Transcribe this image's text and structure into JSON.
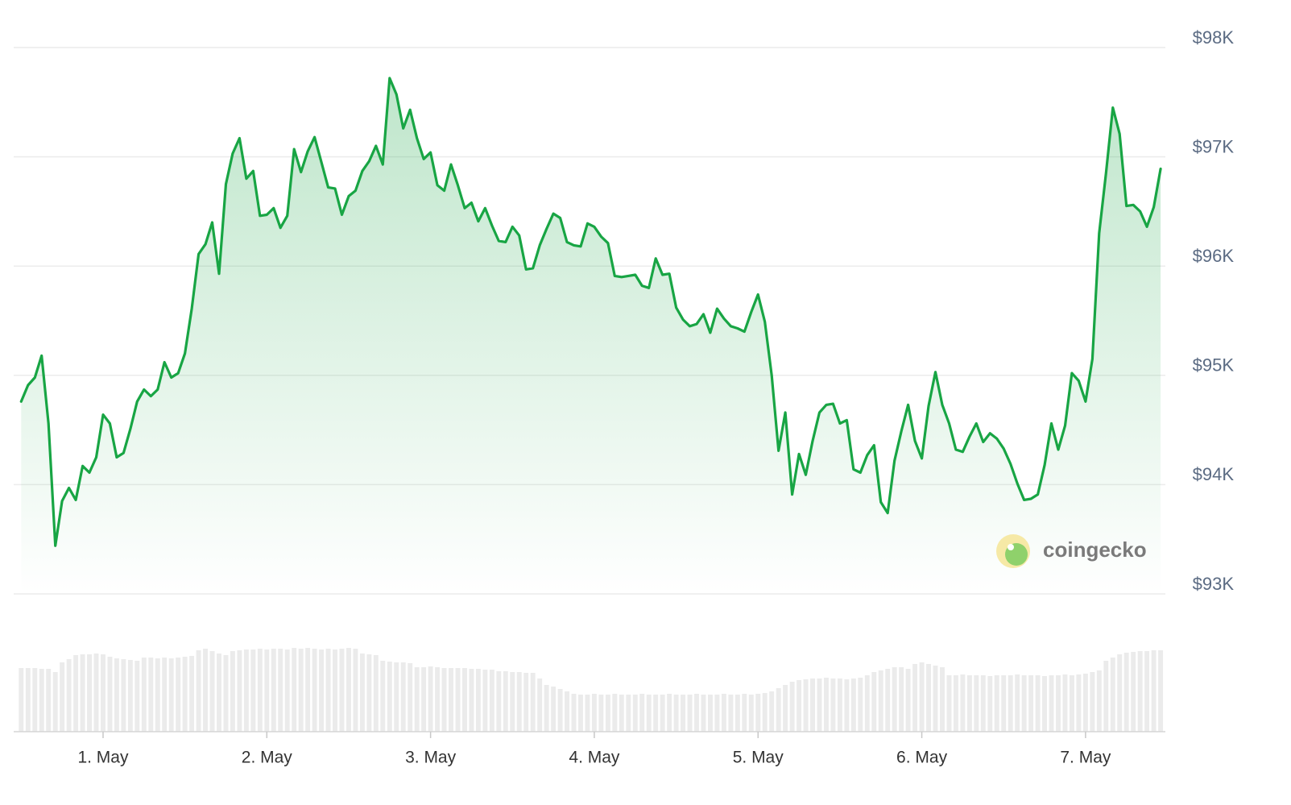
{
  "chart_data": {
    "type": "line",
    "color": "#18a544",
    "x": [
      -12,
      -11,
      -10,
      -9,
      -8,
      -7,
      -6,
      -5,
      -4,
      -3,
      -2,
      -1,
      0,
      1,
      2,
      3,
      4,
      5,
      6,
      7,
      8,
      9,
      10,
      11,
      12,
      13,
      14,
      15,
      16,
      17,
      18,
      19,
      20,
      21,
      22,
      23,
      24,
      25,
      26,
      27,
      28,
      29,
      30,
      31,
      32,
      33,
      34,
      35,
      36,
      37,
      38,
      39,
      40,
      41,
      42,
      43,
      44,
      45,
      46,
      47,
      48,
      49,
      50,
      51,
      52,
      53,
      54,
      55,
      56,
      57,
      58,
      59,
      60,
      61,
      62,
      63,
      64,
      65,
      66,
      67,
      68,
      69,
      70,
      71,
      72,
      73,
      74,
      75,
      76,
      77,
      78,
      79,
      80,
      81,
      82,
      83,
      84,
      85,
      86,
      87,
      88,
      89,
      90,
      91,
      92,
      93,
      94,
      95,
      96,
      97,
      98,
      99,
      100,
      101,
      102,
      103,
      104,
      105,
      106,
      107,
      108,
      109,
      110,
      111,
      112,
      113,
      114,
      115,
      116,
      117,
      118,
      119,
      120,
      121,
      122,
      123,
      124,
      125,
      126,
      127,
      128,
      129,
      130,
      131,
      132,
      133,
      134,
      135,
      136,
      137,
      138,
      139,
      140,
      141,
      142,
      143,
      144,
      145,
      146,
      147,
      148,
      149,
      150,
      151,
      152,
      153,
      154,
      155
    ],
    "values": [
      94760,
      94910,
      94980,
      95180,
      94560,
      93440,
      93850,
      93970,
      93860,
      94170,
      94110,
      94250,
      94640,
      94560,
      94250,
      94290,
      94510,
      94760,
      94870,
      94810,
      94870,
      95120,
      94980,
      95020,
      95200,
      95610,
      96110,
      96200,
      96400,
      95930,
      96750,
      97030,
      97170,
      96800,
      96870,
      96460,
      96470,
      96530,
      96350,
      96460,
      97070,
      96860,
      97050,
      97180,
      96950,
      96720,
      96710,
      96470,
      96640,
      96690,
      96870,
      96960,
      97100,
      96930,
      97720,
      97570,
      97260,
      97430,
      97170,
      96980,
      97040,
      96740,
      96690,
      96930,
      96740,
      96530,
      96580,
      96410,
      96530,
      96370,
      96230,
      96220,
      96360,
      96280,
      95970,
      95980,
      96190,
      96340,
      96480,
      96440,
      96220,
      96190,
      96180,
      96390,
      96360,
      96270,
      96210,
      95910,
      95900,
      95910,
      95920,
      95820,
      95800,
      96070,
      95920,
      95930,
      95620,
      95510,
      95450,
      95470,
      95560,
      95390,
      95610,
      95520,
      95450,
      95430,
      95400,
      95580,
      95740,
      95490,
      95000,
      94310,
      94660,
      93910,
      94280,
      94090,
      94400,
      94660,
      94730,
      94740,
      94560,
      94590,
      94140,
      94110,
      94270,
      94360,
      93840,
      93740,
      94220,
      94490,
      94730,
      94400,
      94240,
      94720,
      95030,
      94730,
      94560,
      94320,
      94300,
      94440,
      94560,
      94390,
      94470,
      94420,
      94330,
      94190,
      94010,
      93860,
      93870,
      93910,
      94180,
      94560,
      94320,
      94540,
      95020,
      94950,
      94760,
      95150,
      96300,
      96850,
      97450,
      97210,
      96550,
      96560,
      96500,
      96360,
      96540,
      96890
    ],
    "volume": {
      "color": "#ebebeb",
      "values": [
        79,
        79,
        79,
        78,
        78,
        74,
        86,
        90,
        95,
        96,
        96,
        97,
        96,
        93,
        91,
        90,
        89,
        88,
        92,
        92,
        91,
        92,
        91,
        92,
        93,
        94,
        101,
        103,
        100,
        97,
        95,
        100,
        101,
        102,
        102,
        103,
        102,
        103,
        103,
        102,
        104,
        103,
        104,
        103,
        102,
        103,
        102,
        103,
        104,
        103,
        97,
        96,
        95,
        88,
        87,
        86,
        86,
        85,
        80,
        80,
        81,
        80,
        79,
        79,
        79,
        79,
        78,
        78,
        77,
        77,
        75,
        75,
        74,
        74,
        73,
        73,
        66,
        58,
        56,
        53,
        50,
        47,
        46,
        46,
        47,
        46,
        46,
        47,
        46,
        46,
        46,
        47,
        46,
        46,
        46,
        47,
        46,
        46,
        46,
        47,
        46,
        46,
        46,
        47,
        46,
        46,
        47,
        46,
        47,
        48,
        50,
        54,
        58,
        62,
        64,
        65,
        66,
        66,
        67,
        66,
        66,
        65,
        66,
        67,
        70,
        74,
        76,
        78,
        80,
        80,
        78,
        84,
        86,
        84,
        82,
        80,
        70,
        70,
        71,
        70,
        70,
        70,
        69,
        70,
        70,
        70,
        71,
        70,
        70,
        70,
        69,
        70,
        70,
        71,
        70,
        71,
        72,
        74,
        76,
        88,
        92,
        96,
        98,
        99,
        100,
        100,
        101,
        101
      ]
    },
    "xlim": [
      -13.1,
      155.7
    ],
    "xticks": [
      {
        "value": 0,
        "label": "1. May"
      },
      {
        "value": 24,
        "label": "2. May"
      },
      {
        "value": 48,
        "label": "3. May"
      },
      {
        "value": 72,
        "label": "4. May"
      },
      {
        "value": 96,
        "label": "5. May"
      },
      {
        "value": 120,
        "label": "6. May"
      },
      {
        "value": 144,
        "label": "7. May"
      }
    ],
    "ylim": [
      93000,
      98000
    ],
    "yticks": [
      {
        "value": 93000,
        "label": "$93K"
      },
      {
        "value": 94000,
        "label": "$94K"
      },
      {
        "value": 95000,
        "label": "$95K"
      },
      {
        "value": 96000,
        "label": "$96K"
      },
      {
        "value": 97000,
        "label": "$97K"
      },
      {
        "value": 98000,
        "label": "$98K"
      }
    ],
    "grid": true,
    "watermark": "coingecko"
  }
}
